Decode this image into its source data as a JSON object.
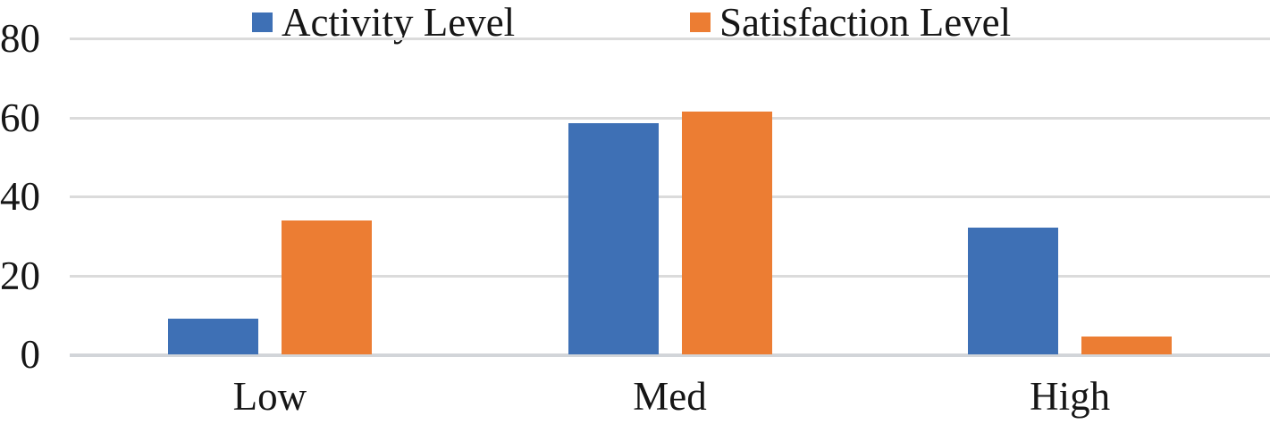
{
  "chart_data": {
    "type": "bar",
    "categories": [
      "Low",
      "Med",
      "High"
    ],
    "series": [
      {
        "name": "Activity Level",
        "color": "#3E70B5",
        "values": [
          9,
          58.5,
          32
        ]
      },
      {
        "name": "Satisfaction Level",
        "color": "#EC7D33",
        "values": [
          34,
          61.5,
          4.5
        ]
      }
    ],
    "title": "",
    "xlabel": "",
    "ylabel": "",
    "ylim": [
      0,
      80
    ],
    "yticks": [
      0,
      20,
      40,
      60,
      80
    ],
    "grid": true,
    "legend_position": "top",
    "colors": {
      "gridline": "#DBDBDB",
      "baseline": "#D2D5D9",
      "text": "#161616",
      "background": "#FFFFFF"
    }
  }
}
